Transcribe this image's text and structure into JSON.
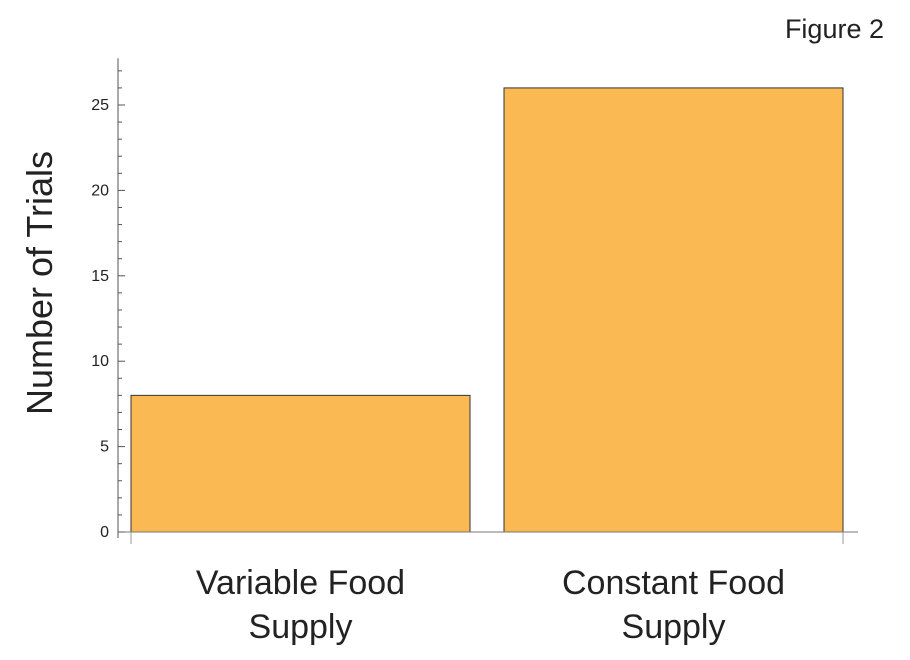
{
  "chart_data": {
    "type": "bar",
    "title": "Figure 2",
    "categories": [
      "Variable Food\nSupply",
      "Constant Food\nSupply"
    ],
    "values": [
      8,
      26
    ],
    "xlabel": "",
    "ylabel": "Number of Trials",
    "ylim": [
      0,
      27.5
    ],
    "yticks": [
      0,
      5,
      10,
      15,
      20,
      25
    ],
    "grid": false,
    "legend": "none",
    "bar_color": "#FBB954",
    "bar_edge_color": "#333333"
  }
}
